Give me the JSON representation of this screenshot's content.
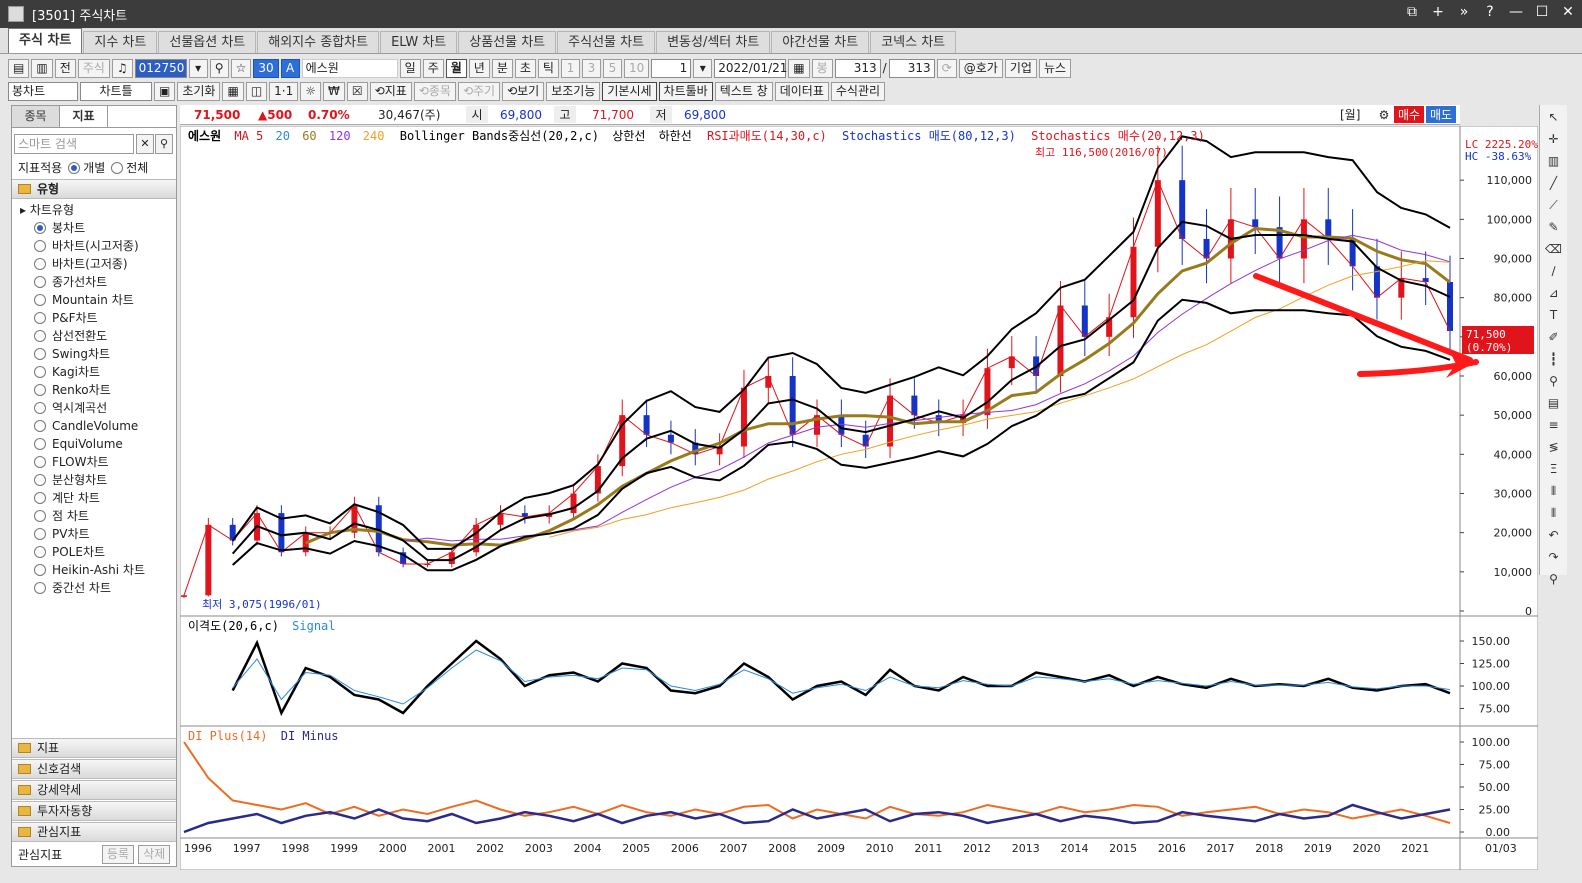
{
  "window": {
    "title": "[3501] 주식차트",
    "buttons": [
      "⧉",
      "+",
      "»",
      "?",
      "—",
      "☐",
      "✕"
    ]
  },
  "tabs": [
    "주식 차트",
    "지수 차트",
    "선물옵션 차트",
    "해외지수 종합차트",
    "ELW 차트",
    "상품선물 차트",
    "주식선물 차트",
    "변동성/섹터 차트",
    "야간선물 차트",
    "코넥스 차트"
  ],
  "toolbar1": {
    "jeon": "전",
    "stock_btn": "주식",
    "code": "012750",
    "num30": "30",
    "A": "A",
    "name": "에스원",
    "periods": [
      "일",
      "주",
      "월",
      "년",
      "분",
      "초",
      "틱"
    ],
    "period_active": "월",
    "counts": [
      "1",
      "3",
      "5",
      "10"
    ],
    "count_sel": "1",
    "date": "2022/01/21",
    "bong": "봉",
    "n1": "313",
    "slash": "/",
    "n2": "313",
    "hoga": "@호가",
    "giup": "기업",
    "news": "뉴스"
  },
  "toolbar2": {
    "chart_type": "봉차트",
    "chart_tools": "차트틀",
    "reset": "초기화",
    "items": [
      "1·1",
      "☼",
      "₩",
      "☒"
    ],
    "jipyo": "⟲지표",
    "jongmok": "⟲종목",
    "jugi": "⟲주기",
    "view": "⟲보기",
    "aux": "보조기능",
    "basic": "기본시세",
    "toolbar": "차트툴바",
    "text": "텍스트 창",
    "data": "데이터표",
    "formula": "수식관리"
  },
  "left": {
    "tabs": [
      "종목",
      "지표"
    ],
    "search_placeholder": "스마트 검색",
    "scope_label": "지표적용",
    "scope_individual": "개별",
    "scope_all": "전체",
    "group_type": "유형",
    "tree_root": "차트유형",
    "tree_items": [
      "봉차트",
      "바차트(시고저종)",
      "바차트(고저종)",
      "종가선차트",
      "Mountain 차트",
      "P&F차트",
      "삼선전환도",
      "Swing차트",
      "Kagi차트",
      "Renko차트",
      "역시계곡선",
      "CandleVolume",
      "EquiVolume",
      "FLOW차트",
      "분산형차트",
      "계단 차트",
      "점 차트",
      "PV차트",
      "POLE차트",
      "Heikin-Ashi 차트",
      "중간선 차트"
    ],
    "groups": [
      "지표",
      "신호검색",
      "강세약세",
      "투자자동향",
      "관심지표"
    ],
    "footer_label": "관심지표",
    "footer_btns": [
      "등록",
      "삭제"
    ]
  },
  "quote": {
    "price": "71,500",
    "change": "▲500",
    "pct": "0.70%",
    "volume": "30,467(주)",
    "open_lbl": "시",
    "open": "69,800",
    "high_lbl": "고",
    "high": "71,700",
    "low_lbl": "저",
    "low": "69,800",
    "unit": "[월]",
    "buy": "매수",
    "sell": "매도"
  },
  "colors": {
    "up": "#e0141a",
    "down": "#1434c8",
    "ma5": "#e0141a",
    "ma20": "#2b8bd9",
    "ma60": "#9a7b1c",
    "ma120": "#9434d8",
    "ma240": "#f0a020",
    "bb": "#000000",
    "arrow": "#ff1a1a",
    "diPlus": "#ee6c22",
    "diMinus": "#2a2a8c"
  },
  "chart_data": [
    {
      "type": "candlestick",
      "panel": "price",
      "legend": [
        "에스원",
        "MA 5",
        "20",
        "60",
        "120",
        "240",
        "Bollinger Bands중심선(20,2,c)",
        "상한선",
        "하한선",
        "RSI과매도(14,30,c)",
        "Stochastics 매도(80,12,3)",
        "Stochastics 매수(20,12,3)"
      ],
      "ylim": [
        0,
        120000
      ],
      "yticks": [
        "0",
        "10,000",
        "20,000",
        "30,000",
        "40,000",
        "50,000",
        "60,000",
        "70,000",
        "80,000",
        "90,000",
        "100,000",
        "110,000"
      ],
      "lc": "LC 2225.20%",
      "hc": "HC -38.63%",
      "high_note": "최고 116,500(2016/07)",
      "low_note": "최저 3,075(1996/01)",
      "last_price": "71,500",
      "last_pct": "(0.70%)",
      "x": [
        1996,
        1996.5,
        1997,
        1997.5,
        1998,
        1998.5,
        1999,
        1999.5,
        2000,
        2000.5,
        2001,
        2001.5,
        2002,
        2002.5,
        2003,
        2003.5,
        2004,
        2004.5,
        2005,
        2005.5,
        2006,
        2006.5,
        2007,
        2007.5,
        2008,
        2008.5,
        2009,
        2009.5,
        2010,
        2010.5,
        2011,
        2011.5,
        2012,
        2012.5,
        2013,
        2013.5,
        2014,
        2014.5,
        2015,
        2015.5,
        2016,
        2016.5,
        2017,
        2017.5,
        2018,
        2018.5,
        2019,
        2019.5,
        2020,
        2020.5,
        2021,
        2021.5,
        2022
      ],
      "close": [
        4000,
        22000,
        18000,
        25000,
        15000,
        20000,
        20000,
        27000,
        15000,
        12000,
        12000,
        15000,
        22000,
        25000,
        24000,
        25000,
        30000,
        37000,
        50000,
        45000,
        43000,
        40000,
        42000,
        57000,
        60000,
        45000,
        50000,
        45000,
        42000,
        55000,
        50000,
        48000,
        50000,
        62000,
        65000,
        60000,
        78000,
        70000,
        75000,
        93000,
        110000,
        95000,
        90000,
        100000,
        98000,
        90000,
        100000,
        95000,
        88000,
        80000,
        85000,
        84000,
        71500
      ]
    },
    {
      "type": "line",
      "panel": "disparity",
      "legend": [
        "이격도(20,6,c)",
        "Signal"
      ],
      "ylim": [
        60,
        160
      ],
      "yticks": [
        "75.00",
        "100.00",
        "125.00",
        "150.00"
      ],
      "x": [
        1997,
        1997.5,
        1998,
        1998.5,
        1999,
        1999.5,
        2000,
        2000.5,
        2001,
        2001.5,
        2002,
        2002.5,
        2003,
        2003.5,
        2004,
        2004.5,
        2005,
        2005.5,
        2006,
        2006.5,
        2007,
        2007.5,
        2008,
        2008.5,
        2009,
        2009.5,
        2010,
        2010.5,
        2011,
        2011.5,
        2012,
        2012.5,
        2013,
        2013.5,
        2014,
        2014.5,
        2015,
        2015.5,
        2016,
        2016.5,
        2017,
        2017.5,
        2018,
        2018.5,
        2019,
        2019.5,
        2020,
        2020.5,
        2021,
        2021.5,
        2022
      ],
      "series": [
        {
          "name": "이격도(20,6,c)",
          "values": [
            95,
            148,
            70,
            120,
            110,
            90,
            85,
            70,
            100,
            125,
            150,
            130,
            100,
            112,
            115,
            105,
            125,
            120,
            95,
            92,
            100,
            125,
            110,
            85,
            100,
            105,
            90,
            118,
            100,
            95,
            110,
            100,
            100,
            115,
            110,
            105,
            112,
            100,
            110,
            102,
            98,
            108,
            100,
            102,
            100,
            108,
            98,
            95,
            100,
            102,
            92
          ]
        },
        {
          "name": "Signal",
          "values": [
            98,
            130,
            85,
            115,
            112,
            95,
            88,
            80,
            98,
            120,
            140,
            128,
            105,
            110,
            112,
            108,
            120,
            118,
            100,
            95,
            102,
            118,
            108,
            92,
            98,
            102,
            95,
            110,
            100,
            98,
            106,
            102,
            100,
            110,
            108,
            105,
            108,
            102,
            106,
            103,
            100,
            105,
            101,
            101,
            101,
            104,
            99,
            97,
            100,
            100,
            96
          ]
        }
      ]
    },
    {
      "type": "line",
      "panel": "dmi",
      "legend": [
        "DI Plus(14)",
        "DI Minus"
      ],
      "ylim": [
        0,
        100
      ],
      "yticks": [
        "0.00",
        "25.00",
        "50.00",
        "75.00",
        "100.00"
      ],
      "xticks": [
        "1996",
        "1997",
        "1998",
        "1999",
        "2000",
        "2001",
        "2002",
        "2003",
        "2004",
        "2005",
        "2006",
        "2007",
        "2008",
        "2009",
        "2010",
        "2011",
        "2012",
        "2013",
        "2014",
        "2015",
        "2016",
        "2017",
        "2018",
        "2019",
        "2020",
        "2021",
        "01/03"
      ],
      "x": [
        1996,
        1996.5,
        1997,
        1997.5,
        1998,
        1998.5,
        1999,
        1999.5,
        2000,
        2000.5,
        2001,
        2001.5,
        2002,
        2002.5,
        2003,
        2003.5,
        2004,
        2004.5,
        2005,
        2005.5,
        2006,
        2006.5,
        2007,
        2007.5,
        2008,
        2008.5,
        2009,
        2009.5,
        2010,
        2010.5,
        2011,
        2011.5,
        2012,
        2012.5,
        2013,
        2013.5,
        2014,
        2014.5,
        2015,
        2015.5,
        2016,
        2016.5,
        2017,
        2017.5,
        2018,
        2018.5,
        2019,
        2019.5,
        2020,
        2020.5,
        2021,
        2021.5,
        2022
      ],
      "series": [
        {
          "name": "DI Plus(14)",
          "values": [
            100,
            60,
            35,
            30,
            25,
            32,
            20,
            28,
            18,
            25,
            20,
            28,
            35,
            25,
            18,
            22,
            28,
            20,
            30,
            22,
            18,
            25,
            20,
            28,
            30,
            15,
            25,
            20,
            15,
            28,
            20,
            18,
            22,
            30,
            25,
            20,
            28,
            22,
            25,
            30,
            28,
            18,
            22,
            25,
            28,
            20,
            25,
            22,
            15,
            20,
            25,
            18,
            10
          ]
        },
        {
          "name": "DI Minus",
          "values": [
            0,
            10,
            15,
            20,
            10,
            18,
            22,
            15,
            25,
            15,
            12,
            20,
            10,
            15,
            22,
            18,
            12,
            20,
            10,
            18,
            22,
            15,
            20,
            10,
            12,
            25,
            15,
            20,
            25,
            12,
            20,
            22,
            18,
            10,
            15,
            20,
            12,
            18,
            15,
            10,
            12,
            22,
            18,
            15,
            12,
            20,
            15,
            18,
            30,
            22,
            15,
            20,
            25
          ]
        }
      ]
    }
  ]
}
